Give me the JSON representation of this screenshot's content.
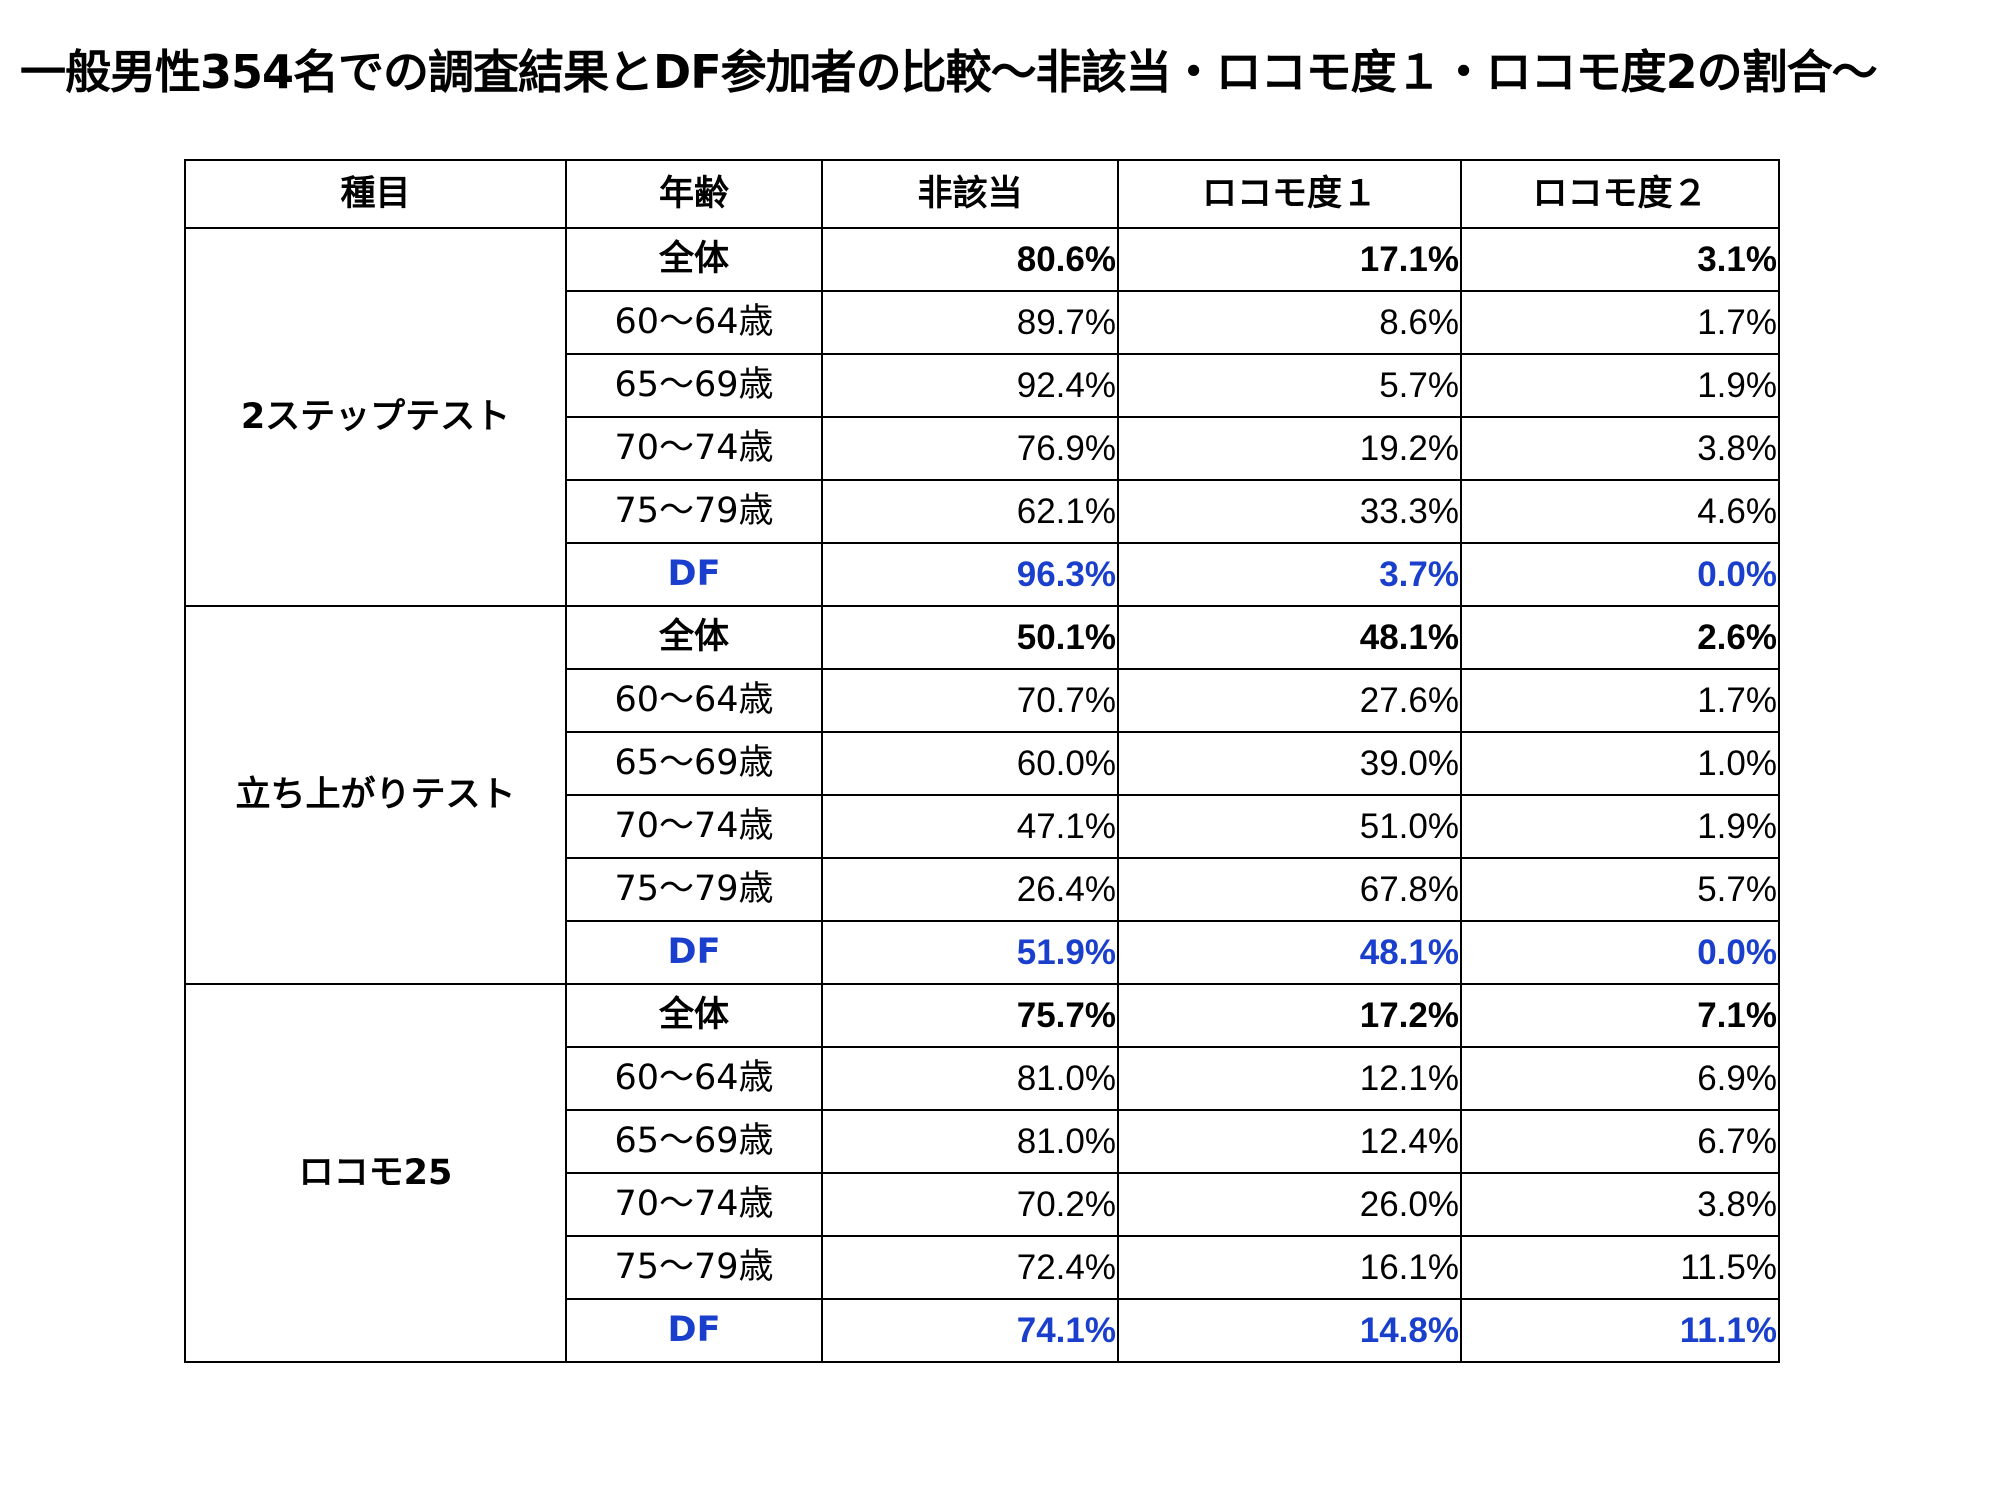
{
  "title": "一般男性354名での調査結果とDF参加者の比較〜非該当・ロコモ度１・ロコモ度2の割合〜",
  "colors": {
    "text": "#000000",
    "df_highlight": "#1a3fcc",
    "border": "#000000",
    "background": "#ffffff"
  },
  "table": {
    "headers": [
      "種目",
      "年齢",
      "非該当",
      "ロコモ度１",
      "ロコモ度２"
    ],
    "groups": [
      {
        "category": "2ステップテスト",
        "rows": [
          {
            "age": "全体",
            "type": "total",
            "values": [
              "80.6%",
              "17.1%",
              "3.1%"
            ]
          },
          {
            "age": "60〜64歳",
            "type": "normal",
            "values": [
              "89.7%",
              "8.6%",
              "1.7%"
            ]
          },
          {
            "age": "65〜69歳",
            "type": "normal",
            "values": [
              "92.4%",
              "5.7%",
              "1.9%"
            ]
          },
          {
            "age": "70〜74歳",
            "type": "normal",
            "values": [
              "76.9%",
              "19.2%",
              "3.8%"
            ]
          },
          {
            "age": "75〜79歳",
            "type": "normal",
            "values": [
              "62.1%",
              "33.3%",
              "4.6%"
            ]
          },
          {
            "age": "DF",
            "type": "df",
            "values": [
              "96.3%",
              "3.7%",
              "0.0%"
            ]
          }
        ]
      },
      {
        "category": "立ち上がりテスト",
        "rows": [
          {
            "age": "全体",
            "type": "total",
            "values": [
              "50.1%",
              "48.1%",
              "2.6%"
            ]
          },
          {
            "age": "60〜64歳",
            "type": "normal",
            "values": [
              "70.7%",
              "27.6%",
              "1.7%"
            ]
          },
          {
            "age": "65〜69歳",
            "type": "normal",
            "values": [
              "60.0%",
              "39.0%",
              "1.0%"
            ]
          },
          {
            "age": "70〜74歳",
            "type": "normal",
            "values": [
              "47.1%",
              "51.0%",
              "1.9%"
            ]
          },
          {
            "age": "75〜79歳",
            "type": "normal",
            "values": [
              "26.4%",
              "67.8%",
              "5.7%"
            ]
          },
          {
            "age": "DF",
            "type": "df",
            "values": [
              "51.9%",
              "48.1%",
              "0.0%"
            ]
          }
        ]
      },
      {
        "category": "ロコモ25",
        "rows": [
          {
            "age": "全体",
            "type": "total",
            "values": [
              "75.7%",
              "17.2%",
              "7.1%"
            ]
          },
          {
            "age": "60〜64歳",
            "type": "normal",
            "values": [
              "81.0%",
              "12.1%",
              "6.9%"
            ]
          },
          {
            "age": "65〜69歳",
            "type": "normal",
            "values": [
              "81.0%",
              "12.4%",
              "6.7%"
            ]
          },
          {
            "age": "70〜74歳",
            "type": "normal",
            "values": [
              "70.2%",
              "26.0%",
              "3.8%"
            ]
          },
          {
            "age": "75〜79歳",
            "type": "normal",
            "values": [
              "72.4%",
              "16.1%",
              "11.5%"
            ]
          },
          {
            "age": "DF",
            "type": "df",
            "values": [
              "74.1%",
              "14.8%",
              "11.1%"
            ]
          }
        ]
      }
    ]
  }
}
